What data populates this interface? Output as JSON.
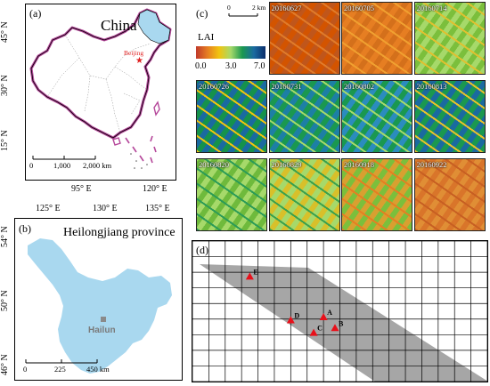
{
  "panel_a": {
    "label": "(a)",
    "title": "China",
    "city": "Beijing",
    "lat_ticks": [
      "45° N",
      "30° N",
      "15° N"
    ],
    "lon_ticks": [
      "95° E",
      "120° E"
    ],
    "scale": [
      "0",
      "1,000",
      "2,000 km"
    ]
  },
  "panel_b": {
    "label": "(b)",
    "title": "Heilongjiang province",
    "site": "Hailun",
    "lat_ticks": [
      "54° N",
      "50° N",
      "46° N"
    ],
    "lon_ticks": [
      "125° E",
      "130° E",
      "135° E"
    ],
    "scale": [
      "0",
      "225",
      "450 km"
    ]
  },
  "panel_c": {
    "label": "(c)",
    "scale": [
      "0",
      "2 km"
    ],
    "legend_title": "LAI",
    "legend_ticks": [
      "0.0",
      "3.0",
      "7.0"
    ],
    "legend_colors": [
      "#c0392b",
      "#e67e22",
      "#f1c40f",
      "#a6d96a",
      "#1a9850",
      "#1a6aa0",
      "#0b2d6b"
    ],
    "dates": [
      "20160627",
      "20160705",
      "20160714",
      "20160726",
      "20160731",
      "20160802",
      "20160813",
      "20160820",
      "20160829",
      "20160918",
      "20160922"
    ]
  },
  "panel_d": {
    "label": "(d)",
    "points": [
      {
        "name": "E",
        "col": 3.5,
        "row": 2.3
      },
      {
        "name": "D",
        "col": 6.0,
        "row": 5.1
      },
      {
        "name": "A",
        "col": 8.0,
        "row": 4.9
      },
      {
        "name": "C",
        "col": 7.4,
        "row": 5.9
      },
      {
        "name": "B",
        "col": 8.7,
        "row": 5.6
      }
    ]
  }
}
